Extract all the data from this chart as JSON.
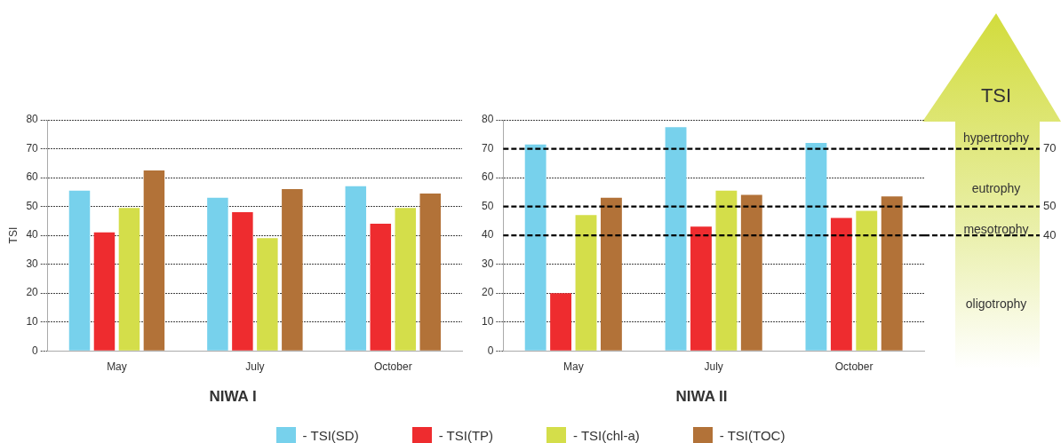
{
  "chart_data": [
    {
      "type": "bar",
      "title": "NIWA I",
      "ylabel": "TSI",
      "categories": [
        "May",
        "July",
        "October"
      ],
      "series": [
        {
          "name": "- TSI(SD)",
          "color": "#77d1ec",
          "values": [
            55.5,
            53,
            57
          ]
        },
        {
          "name": "- TSI(TP)",
          "color": "#ee2c2f",
          "values": [
            41,
            48,
            44
          ]
        },
        {
          "name": "- TSI(chl-a)",
          "color": "#d4de4a",
          "values": [
            49.5,
            39,
            49.5
          ]
        },
        {
          "name": "- TSI(TOC)",
          "color": "#b27238",
          "values": [
            62.5,
            56,
            54.5
          ]
        }
      ],
      "ylim": [
        0,
        80
      ],
      "yticks": [
        0,
        10,
        20,
        30,
        40,
        50,
        60,
        70,
        80
      ],
      "grid": "y",
      "legend": "bottom"
    },
    {
      "type": "bar",
      "title": "NIWA II",
      "categories": [
        "May",
        "July",
        "October"
      ],
      "series": [
        {
          "color": "#77d1ec",
          "values": [
            71.5,
            77.5,
            72
          ]
        },
        {
          "color": "#ee2c2f",
          "values": [
            20,
            43,
            46
          ]
        },
        {
          "color": "#d4de4a",
          "values": [
            47,
            55.5,
            48.5
          ]
        },
        {
          "color": "#b27238",
          "values": [
            53,
            54,
            53.5
          ]
        }
      ],
      "ylim": [
        0,
        80
      ],
      "yticks": [
        0,
        10,
        20,
        30,
        40,
        50,
        60,
        70,
        80
      ],
      "grid": "y",
      "ref_lines": [
        {
          "axis": "y",
          "value": 70,
          "label": "70"
        },
        {
          "axis": "y",
          "value": 50,
          "label": "50"
        },
        {
          "axis": "y",
          "value": 40,
          "label": "40"
        }
      ],
      "annotations": [
        "TSI",
        "hypertrophy",
        "eutrophy",
        "mesotrophy",
        "oligotrophy"
      ]
    }
  ]
}
